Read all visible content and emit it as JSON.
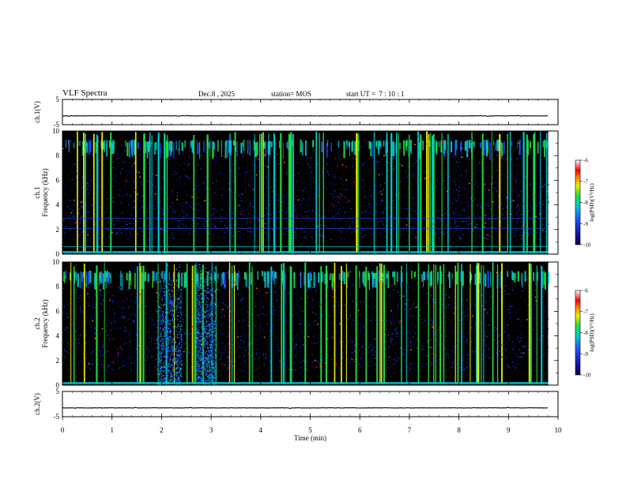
{
  "header": {
    "title": "VLF Spectra",
    "date": "Dec.8 , 2025",
    "station": "station= MOS",
    "start_ut": "start UT =  7 : 10 : 1"
  },
  "chart_data": [
    {
      "type": "line",
      "panel": "ch1-waveform",
      "ylabel": "ch.1(V)",
      "ylim": [
        -5,
        5
      ],
      "yticks": [
        "5",
        "-5"
      ],
      "series": [
        {
          "name": "ch.1 waveform",
          "level": -1.5
        }
      ]
    },
    {
      "type": "heatmap",
      "panel": "ch1-spectrogram",
      "ylabel": "ch.1",
      "ylabel2": "Frequency (kHz)",
      "ylim": [
        0,
        10
      ],
      "yticks": [
        "0",
        "2",
        "4",
        "6",
        "8",
        "10"
      ],
      "xlim": [
        0,
        10
      ],
      "data_end_min": 9.8,
      "bright_band_khz": [
        1.2,
        9.3
      ],
      "hum_lines_khz": [
        0.6,
        2.1,
        2.9
      ],
      "colorbar": {
        "label": "log(PSD)(V²/Hz)",
        "range": [
          -10,
          -6
        ],
        "ticks": [
          "-6",
          "-7",
          "-8",
          "-9",
          "-10"
        ]
      }
    },
    {
      "type": "heatmap",
      "panel": "ch2-spectrogram",
      "ylabel": "ch.2",
      "ylabel2": "Frequency (kHz)",
      "ylim": [
        0,
        10
      ],
      "yticks": [
        "0",
        "2",
        "4",
        "6",
        "8",
        "10"
      ],
      "xlim": [
        0,
        10
      ],
      "data_end_min": 9.8,
      "bright_band_khz": [
        1.2,
        9.3
      ],
      "noise_bursts_min": [
        [
          1.9,
          2.4
        ],
        [
          2.7,
          3.1
        ]
      ],
      "colorbar": {
        "label": "log(PSD)(V²/Hz)",
        "range": [
          -10,
          -6
        ],
        "ticks": [
          "-6",
          "-7",
          "-8",
          "-9",
          "-10"
        ]
      }
    },
    {
      "type": "line",
      "panel": "ch2-waveform",
      "ylabel": "ch.2(V)",
      "ylim": [
        -5,
        5
      ],
      "yticks": [
        "5",
        "-5"
      ],
      "series": [
        {
          "name": "ch.2 waveform",
          "level": -1.5
        }
      ]
    }
  ],
  "x_axis": {
    "label": "Time  (min)",
    "ticks": [
      "0",
      "1",
      "2",
      "3",
      "4",
      "5",
      "6",
      "7",
      "8",
      "9",
      "10"
    ],
    "range": [
      0,
      10
    ]
  },
  "colors": {
    "spec_bg": "#000000",
    "cmap": [
      "#10108a",
      "#2050ff",
      "#00c8d0",
      "#20e040",
      "#f0f000",
      "#ff8000",
      "#ff0000",
      "#ffffff"
    ]
  }
}
